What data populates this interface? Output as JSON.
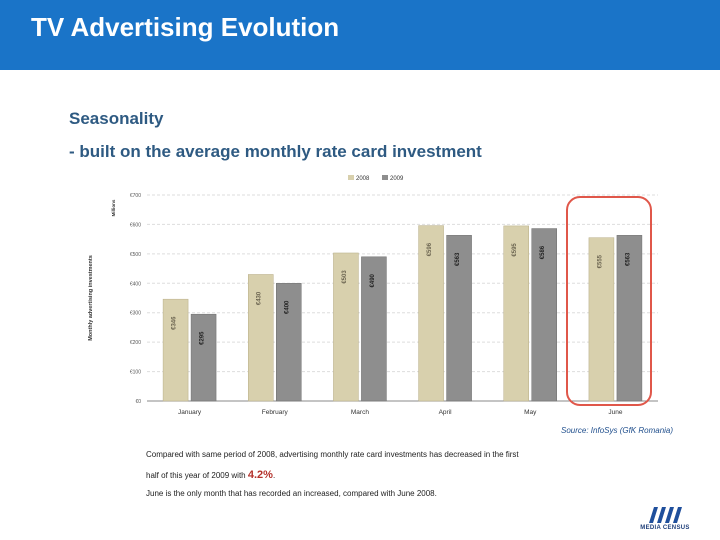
{
  "header": {
    "title": "TV Advertising Evolution"
  },
  "section": {
    "heading": "Seasonality",
    "subtitle": "- built on the average monthly rate card investment"
  },
  "colors": {
    "header_bg": "#1a74c8",
    "series_2008": "#d8d0ad",
    "series_2009": "#8e8e8e",
    "highlight": "#e0574a",
    "accent_percent": "#b4322c"
  },
  "chart_data": {
    "type": "bar",
    "title": "",
    "ylabel": "Monthly advertising investments",
    "yunit": "Millions",
    "ylim": [
      0,
      700
    ],
    "yticks": [
      0,
      100,
      200,
      300,
      400,
      500,
      600,
      700
    ],
    "ytick_labels": [
      "€0",
      "€100",
      "€200",
      "€300",
      "€400",
      "€500",
      "€600",
      "€700"
    ],
    "categories": [
      "January",
      "February",
      "March",
      "April",
      "May",
      "June"
    ],
    "series": [
      {
        "name": "2008",
        "values": [
          346,
          430,
          503,
          596,
          595,
          555
        ],
        "data_labels": [
          "€346",
          "€430",
          "€503",
          "€596",
          "€595",
          "€555"
        ]
      },
      {
        "name": "2009",
        "values": [
          295,
          400,
          490,
          563,
          586,
          563
        ],
        "data_labels": [
          "€295",
          "€400",
          "€490",
          "€563",
          "€586",
          "€563"
        ]
      }
    ],
    "legend_position": "top-center",
    "highlight_category": "June"
  },
  "source": "Source: InfoSys (GfK Romania)",
  "notes": {
    "line1": "Compared with same period of 2008, advertising monthly rate card investments has decreased in the first",
    "line2_before": "half of this year of 2009 with",
    "line2_value": "4.2%",
    "line2_after": ".",
    "line3": "June is the only month that has recorded an increased, compared with June 2008."
  },
  "logo": {
    "name": "MEDIA CENSUS"
  }
}
